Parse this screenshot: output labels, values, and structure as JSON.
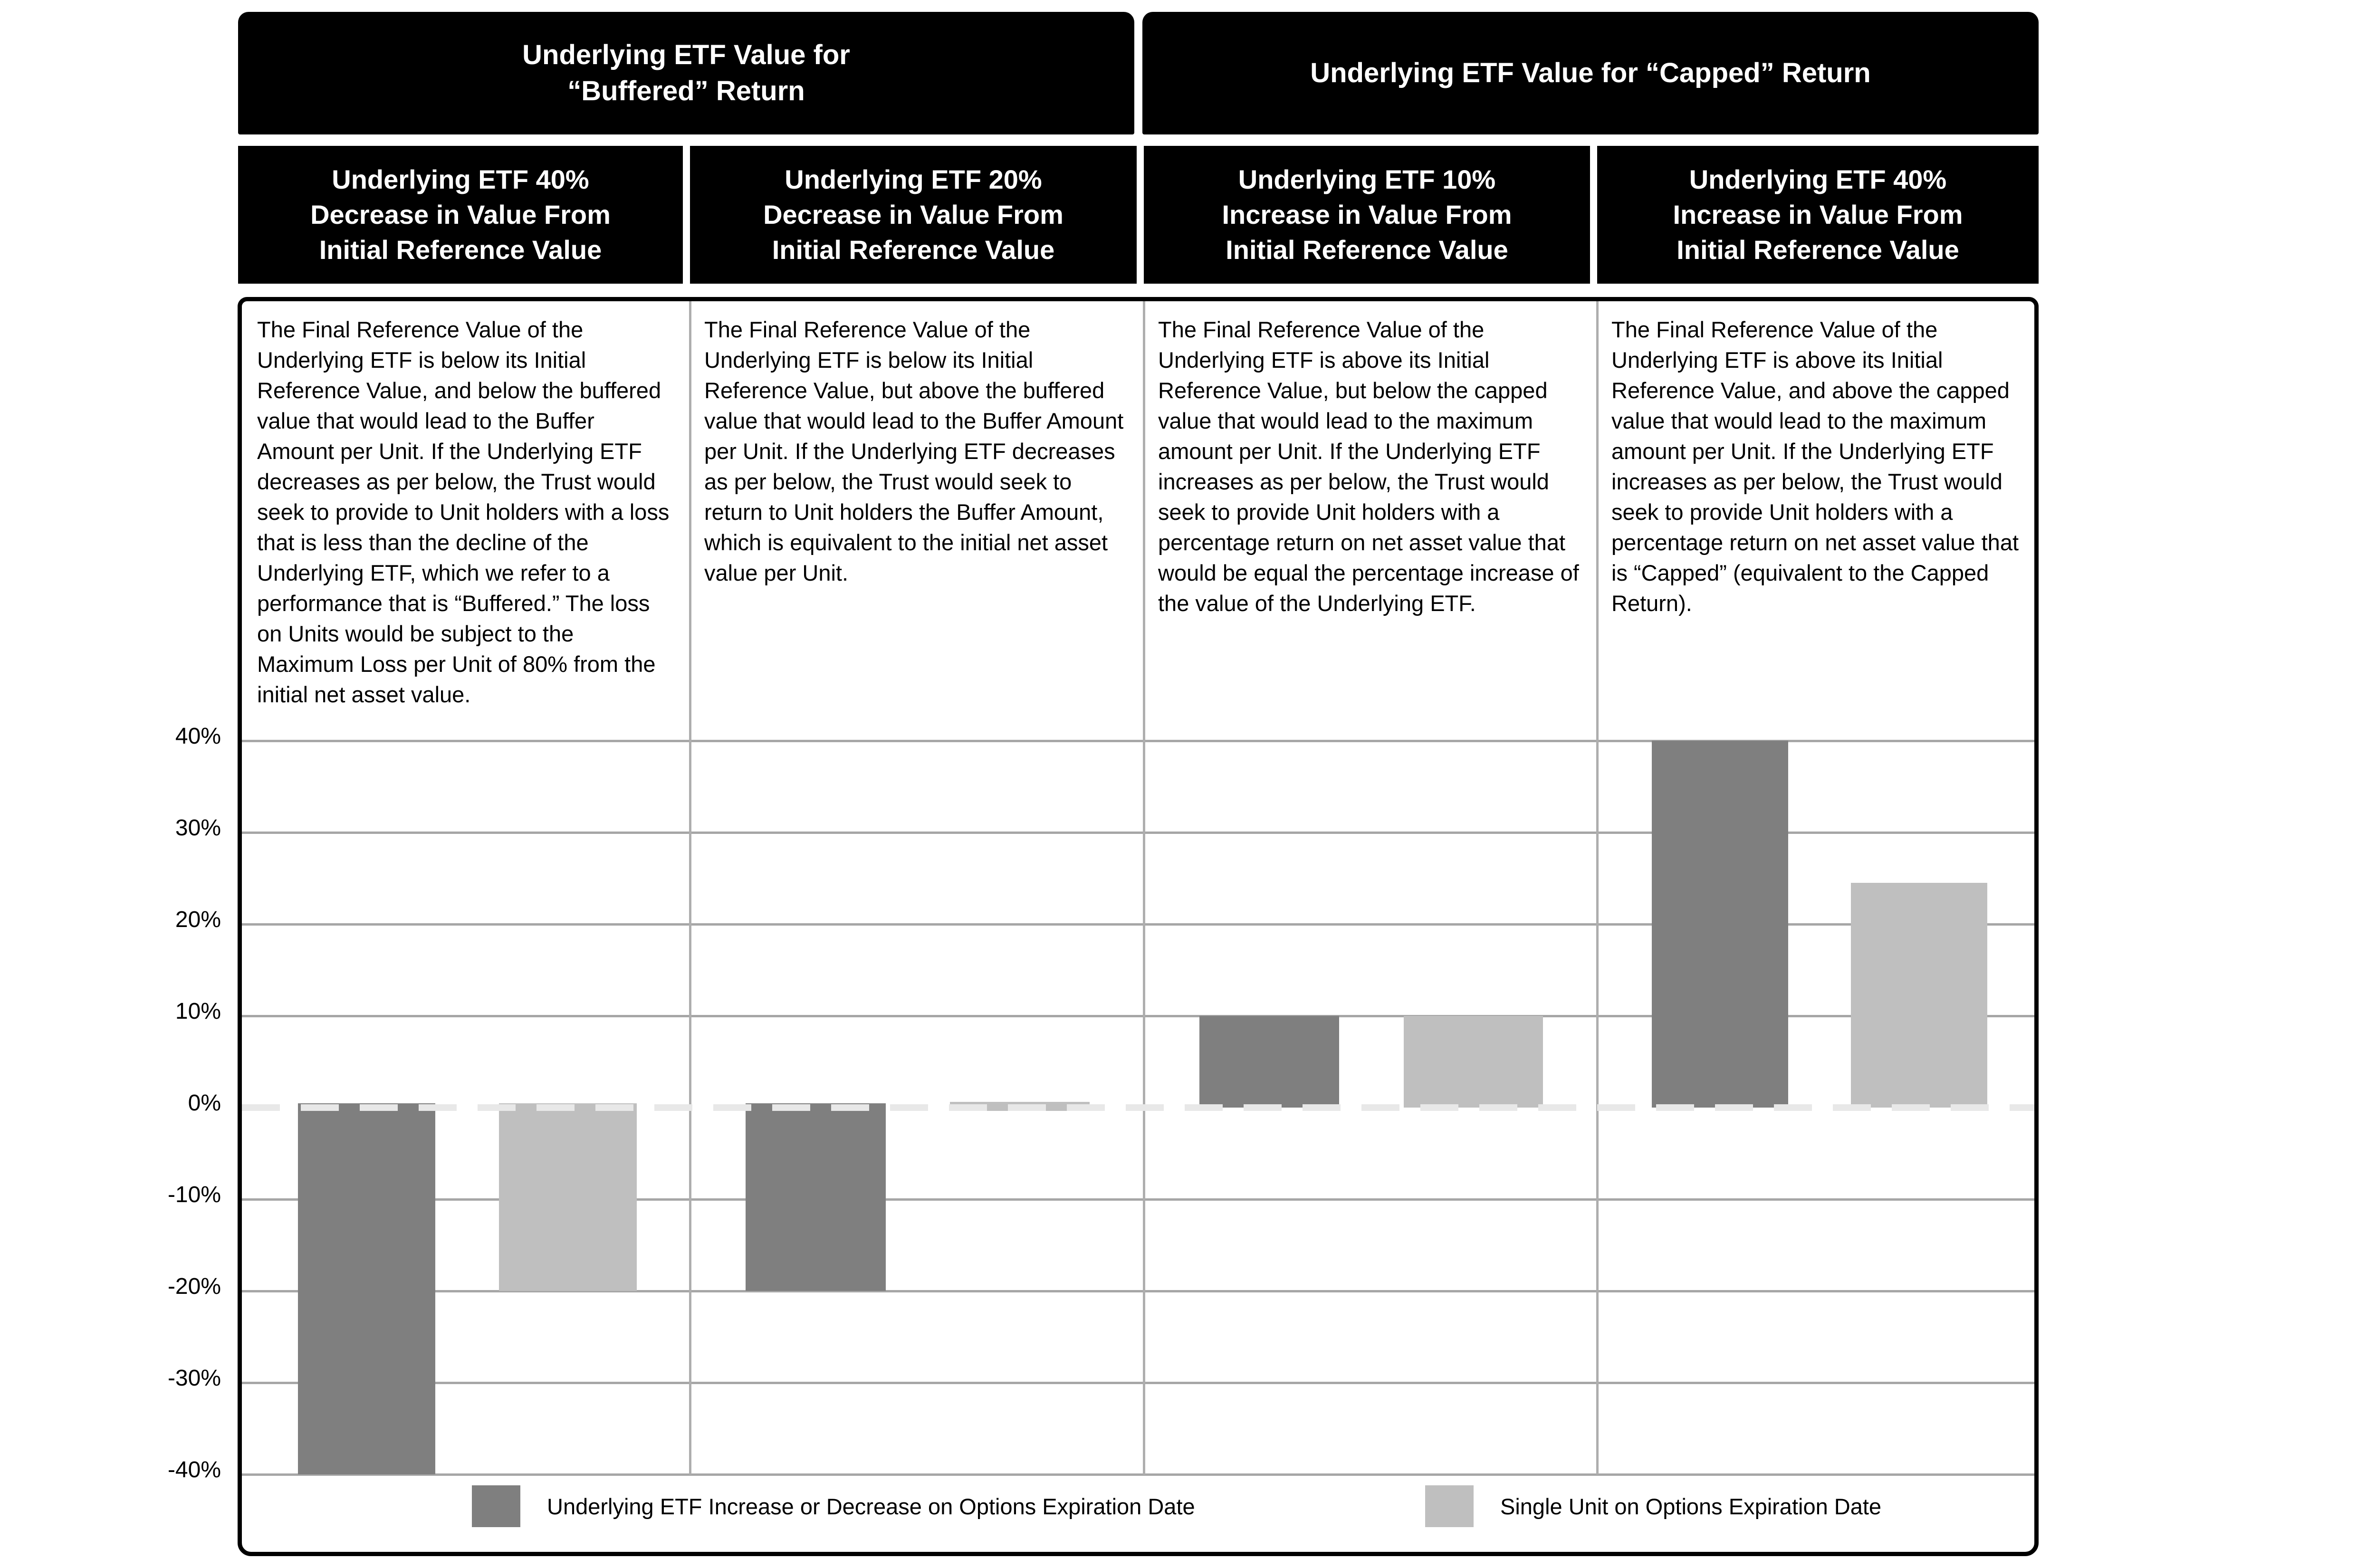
{
  "figure": {
    "group_headers": {
      "buffered_line1": "Underlying ETF Value for",
      "buffered_line2": "“Buffered” Return",
      "capped": "Underlying ETF Value for “Capped” Return"
    },
    "columns": [
      {
        "subheader_lines": [
          "Underlying ETF 40%",
          "Decrease in Value From",
          "Initial Reference Value"
        ],
        "description": "The Final Reference Value of the Underlying ETF is below its Initial Reference Value, and below the buffered value that would lead to the Buffer Amount per Unit. If the Underlying ETF decreases as per below, the Trust would seek to provide to Unit holders with a loss that is less than the decline of the Underlying ETF, which we refer to a performance that is “Buffered.” The loss on Units would be subject to the Maximum Loss per Unit of 80% from the initial net asset value."
      },
      {
        "subheader_lines": [
          "Underlying ETF 20%",
          "Decrease in Value From",
          "Initial Reference Value"
        ],
        "description": "The Final Reference Value of the Underlying ETF is below its Initial Reference Value, but above the buffered value that would lead to the Buffer Amount per Unit. If the Underlying ETF decreases as per below, the Trust would seek to return to Unit holders the Buffer Amount, which is equivalent to the initial net asset value per Unit."
      },
      {
        "subheader_lines": [
          "Underlying ETF 10%",
          "Increase in Value From",
          "Initial Reference Value"
        ],
        "description": "The Final Reference Value of the Underlying ETF is above its Initial Reference Value, but below the capped value that would lead to the maximum amount per Unit. If the Underlying ETF increases as per below, the Trust would seek to provide Unit holders with a percentage return on net asset value that would be equal the percentage increase of the value of the Underlying ETF."
      },
      {
        "subheader_lines": [
          "Underlying ETF 40%",
          "Increase in Value From",
          "Initial Reference Value"
        ],
        "description": "The Final Reference Value of the Underlying ETF is above its Initial Reference Value, and above the capped value that would lead to the maximum amount per Unit. If the Underlying ETF increases as per below, the Trust would seek to provide Unit holders with a percentage return on net asset value that is “Capped” (equivalent to the Capped Return)."
      }
    ],
    "legend": [
      {
        "label": "Underlying ETF Increase or Decrease on Options Expiration Date",
        "color": "#7f7f7f"
      },
      {
        "label": "Single Unit on Options Expiration Date",
        "color": "#bfbfbf"
      }
    ]
  },
  "chart_data": {
    "type": "bar",
    "title": "",
    "xlabel": "",
    "ylabel": "",
    "categories": [
      "Underlying ETF 40% Decrease in Value From Initial Reference Value",
      "Underlying ETF 20% Decrease in Value From Initial Reference Value",
      "Underlying ETF 10% Increase in Value From Initial Reference Value",
      "Underlying ETF 40% Increase in Value From Initial Reference Value"
    ],
    "series": [
      {
        "name": "Underlying ETF Increase or Decrease on Options Expiration Date",
        "color": "#7f7f7f",
        "values": [
          -40,
          -20,
          10,
          40
        ]
      },
      {
        "name": "Single Unit on Options Expiration Date",
        "color": "#bfbfbf",
        "values": [
          -20,
          0.5,
          10,
          24.5
        ]
      }
    ],
    "ylim": [
      -40,
      40
    ],
    "y_ticks": [
      40,
      30,
      20,
      10,
      0,
      -10,
      -20,
      -30,
      -40
    ],
    "y_tick_labels": [
      "40%",
      "30%",
      "20%",
      "10%",
      "0%",
      "-10%",
      "-20%",
      "-30%",
      "-40%"
    ],
    "grid": true,
    "zero_line_style": "dashed",
    "gridline_color": "#a6a6a6",
    "zero_line_color": "#e8e8e8",
    "legend_position": "bottom-inside"
  }
}
